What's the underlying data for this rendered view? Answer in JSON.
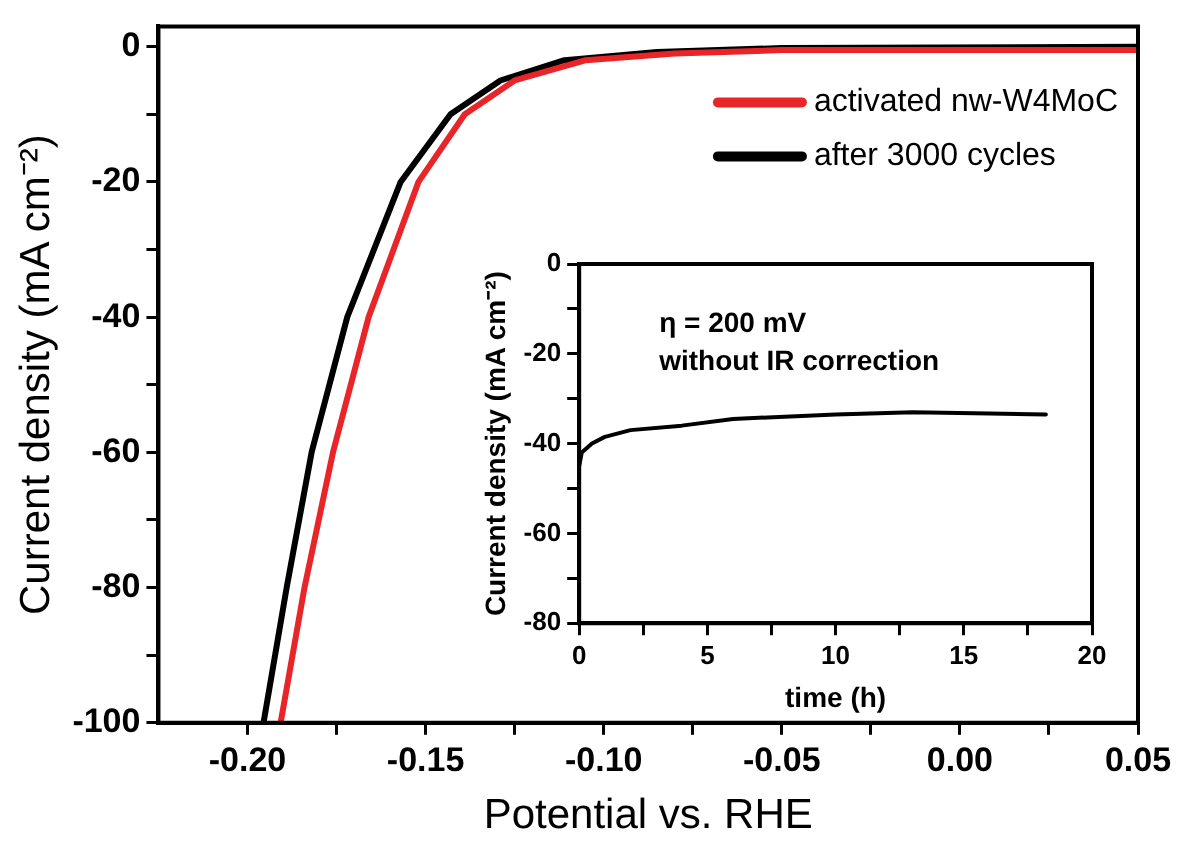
{
  "chart_data": [
    {
      "type": "line",
      "xlabel": "Potential vs. RHE",
      "ylabel": "Current density (mA cm⁻²)",
      "xlim": [
        -0.225,
        0.05
      ],
      "xticks": [
        {
          "value": -0.2,
          "label": "-0.20"
        },
        {
          "value": -0.175,
          "label": null
        },
        {
          "value": -0.15,
          "label": "-0.15"
        },
        {
          "value": -0.125,
          "label": null
        },
        {
          "value": -0.1,
          "label": "-0.10"
        },
        {
          "value": -0.075,
          "label": null
        },
        {
          "value": -0.05,
          "label": "-0.05"
        },
        {
          "value": -0.025,
          "label": null
        },
        {
          "value": 0,
          "label": "0.00"
        },
        {
          "value": 0.025,
          "label": null
        },
        {
          "value": 0.05,
          "label": "0.05"
        }
      ],
      "ylim": [
        -100,
        3
      ],
      "yticks": [
        -100,
        {
          "value": -90,
          "label": null
        },
        -80,
        {
          "value": -70,
          "label": null
        },
        -60,
        {
          "value": -50,
          "label": null
        },
        -40,
        {
          "value": -30,
          "label": null
        },
        -20,
        {
          "value": -10,
          "label": null
        },
        0
      ],
      "grid": false,
      "legend": "top right",
      "series": [
        {
          "name": "activated nw-W4MoC",
          "color": "#e8262a",
          "x": [
            -0.1907,
            -0.184,
            -0.176,
            -0.166,
            -0.152,
            -0.139,
            -0.125,
            -0.105,
            -0.08,
            -0.05,
            0.05
          ],
          "values": [
            -100,
            -80,
            -60,
            -40,
            -20,
            -10,
            -5,
            -2,
            -1,
            -0.5,
            -0.5
          ]
        },
        {
          "name": "after 3000 cycles",
          "color": "#000000",
          "x": [
            -0.1955,
            -0.189,
            -0.182,
            -0.172,
            -0.157,
            -0.143,
            -0.129,
            -0.111,
            -0.085,
            -0.05,
            0.05
          ],
          "values": [
            -100,
            -80,
            -60,
            -40,
            -20,
            -10,
            -5,
            -2,
            -0.8,
            -0.2,
            0
          ]
        }
      ]
    },
    {
      "type": "line",
      "xlabel": "time (h)",
      "ylabel": "Current density (mA cm⁻²)",
      "annotations": [
        "η = 200 mV",
        "without IR correction"
      ],
      "xlim": [
        0,
        20
      ],
      "xticks": [
        0,
        {
          "value": 2.5,
          "label": null
        },
        5,
        {
          "value": 7.5,
          "label": null
        },
        10,
        {
          "value": 12.5,
          "label": null
        },
        15,
        {
          "value": 17.5,
          "label": null
        },
        20
      ],
      "ylim": [
        -80,
        0
      ],
      "yticks": [
        -80,
        {
          "value": -70,
          "label": null
        },
        -60,
        {
          "value": -50,
          "label": null
        },
        -40,
        {
          "value": -30,
          "label": null
        },
        -20,
        {
          "value": -10,
          "label": null
        },
        0
      ],
      "grid": false,
      "series": [
        {
          "color": "#000000",
          "x": [
            0,
            0.1,
            0.5,
            1,
            2,
            4,
            6,
            10,
            13,
            16,
            18.2
          ],
          "values": [
            -45,
            -42,
            -40,
            -38.5,
            -37,
            -36,
            -34.5,
            -33.5,
            -33,
            -33.3,
            -33.5
          ]
        }
      ]
    }
  ]
}
